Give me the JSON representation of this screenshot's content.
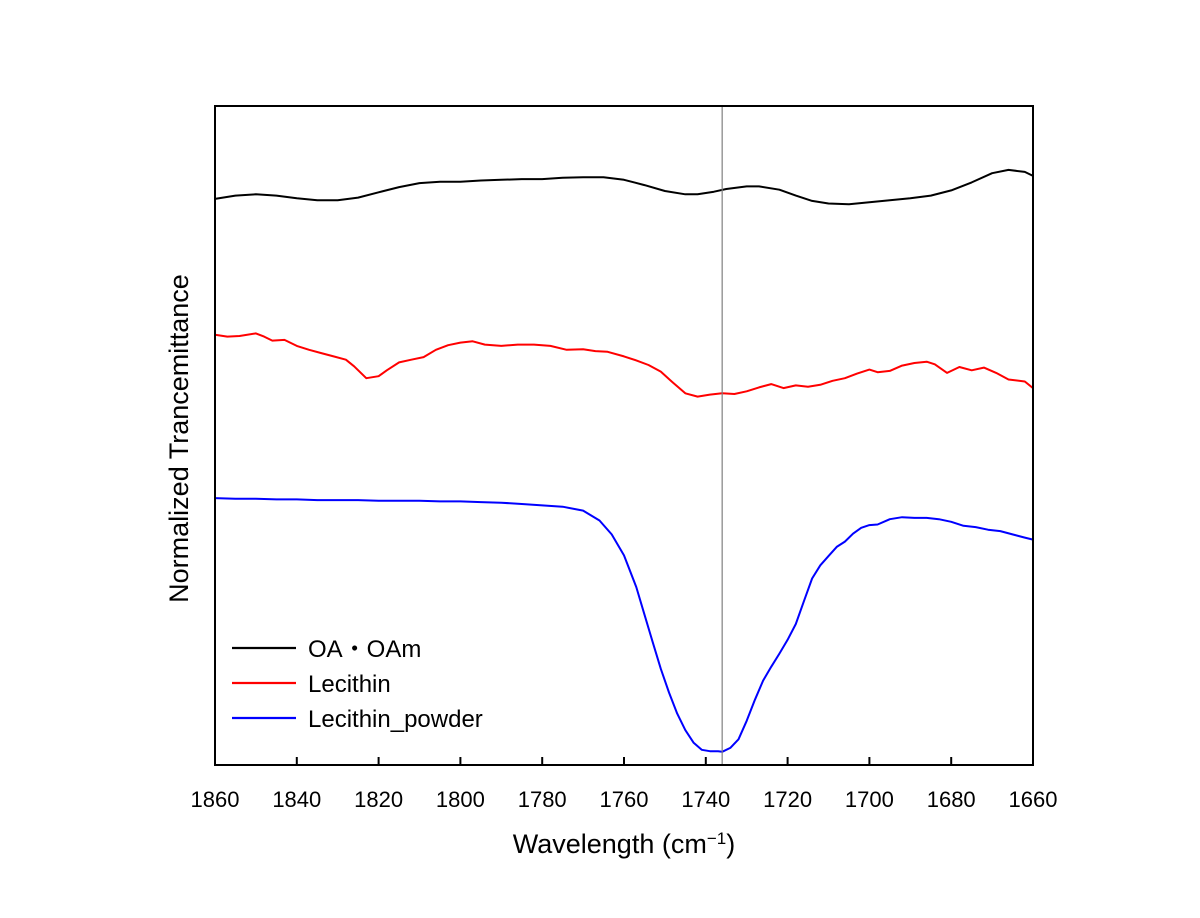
{
  "chart_data": {
    "type": "line",
    "title": "",
    "xlabel": "Wavelength (cm",
    "xlabel_unit_sup": "−1",
    "xlabel_close": ")",
    "ylabel": "Normalized Trancemittance",
    "xlim": [
      1860,
      1660
    ],
    "x_reversed": true,
    "ylim": [
      0,
      1
    ],
    "y_ticks_shown": false,
    "grid": false,
    "legend_position": "bottom-left",
    "x_ticks": [
      1860,
      1840,
      1820,
      1800,
      1780,
      1760,
      1740,
      1720,
      1700,
      1680,
      1660
    ],
    "reference_line_x": 1736,
    "reference_line_color": "#808080",
    "series": [
      {
        "name": "OA・OAm",
        "color": "#000000",
        "x": [
          1860,
          1855,
          1850,
          1845,
          1840,
          1835,
          1830,
          1825,
          1820,
          1815,
          1810,
          1805,
          1800,
          1795,
          1790,
          1785,
          1780,
          1775,
          1770,
          1765,
          1760,
          1755,
          1750,
          1745,
          1742,
          1738,
          1735,
          1730,
          1727,
          1722,
          1718,
          1714,
          1710,
          1705,
          1700,
          1695,
          1690,
          1685,
          1680,
          1675,
          1670,
          1666,
          1662,
          1660
        ],
        "y": [
          0.859,
          0.864,
          0.866,
          0.864,
          0.86,
          0.857,
          0.857,
          0.861,
          0.869,
          0.877,
          0.883,
          0.885,
          0.885,
          0.887,
          0.888,
          0.889,
          0.889,
          0.891,
          0.892,
          0.892,
          0.888,
          0.88,
          0.871,
          0.866,
          0.866,
          0.87,
          0.874,
          0.878,
          0.878,
          0.873,
          0.864,
          0.856,
          0.852,
          0.851,
          0.854,
          0.857,
          0.86,
          0.864,
          0.872,
          0.884,
          0.898,
          0.903,
          0.9,
          0.894
        ]
      },
      {
        "name": "Lecithin",
        "color": "#ff0000",
        "x": [
          1860,
          1857,
          1854,
          1850,
          1848,
          1846,
          1843,
          1840,
          1837,
          1834,
          1831,
          1828,
          1826,
          1823,
          1820,
          1818,
          1815,
          1812,
          1809,
          1806,
          1803,
          1800,
          1797,
          1794,
          1790,
          1786,
          1782,
          1778,
          1774,
          1770,
          1767,
          1764,
          1760,
          1757,
          1754,
          1751,
          1748,
          1745,
          1742,
          1739,
          1736,
          1733,
          1730,
          1727,
          1724,
          1721,
          1718,
          1715,
          1712,
          1709,
          1706,
          1703,
          1700,
          1698,
          1695,
          1692,
          1689,
          1686,
          1684,
          1681,
          1678,
          1675,
          1672,
          1669,
          1666,
          1662,
          1660
        ],
        "y": [
          0.653,
          0.65,
          0.651,
          0.655,
          0.65,
          0.644,
          0.645,
          0.636,
          0.63,
          0.625,
          0.62,
          0.615,
          0.605,
          0.587,
          0.59,
          0.599,
          0.611,
          0.615,
          0.619,
          0.63,
          0.637,
          0.641,
          0.643,
          0.638,
          0.636,
          0.638,
          0.638,
          0.636,
          0.63,
          0.631,
          0.628,
          0.627,
          0.62,
          0.614,
          0.607,
          0.597,
          0.58,
          0.564,
          0.559,
          0.562,
          0.564,
          0.563,
          0.567,
          0.573,
          0.578,
          0.572,
          0.576,
          0.574,
          0.577,
          0.583,
          0.587,
          0.594,
          0.6,
          0.596,
          0.598,
          0.606,
          0.61,
          0.612,
          0.608,
          0.595,
          0.604,
          0.599,
          0.603,
          0.595,
          0.585,
          0.582,
          0.572
        ]
      },
      {
        "name": "Lecithin_powder",
        "color": "#0000ff",
        "x": [
          1860,
          1855,
          1850,
          1845,
          1840,
          1835,
          1830,
          1825,
          1820,
          1815,
          1810,
          1805,
          1800,
          1795,
          1790,
          1785,
          1780,
          1775,
          1770,
          1766,
          1763,
          1760,
          1757,
          1755,
          1753,
          1751,
          1749,
          1747,
          1745,
          1743,
          1741,
          1739,
          1737,
          1736,
          1734,
          1732,
          1730,
          1728,
          1726,
          1724,
          1722,
          1720,
          1718,
          1716,
          1714,
          1712,
          1710,
          1708,
          1706,
          1704,
          1702,
          1700,
          1698,
          1695,
          1692,
          1689,
          1686,
          1683,
          1680,
          1677,
          1674,
          1671,
          1668,
          1665,
          1662,
          1660
        ],
        "y": [
          0.405,
          0.404,
          0.404,
          0.403,
          0.403,
          0.402,
          0.402,
          0.402,
          0.401,
          0.401,
          0.401,
          0.4,
          0.4,
          0.399,
          0.398,
          0.396,
          0.394,
          0.392,
          0.386,
          0.371,
          0.35,
          0.318,
          0.27,
          0.228,
          0.187,
          0.146,
          0.11,
          0.078,
          0.053,
          0.034,
          0.023,
          0.021,
          0.021,
          0.02,
          0.026,
          0.039,
          0.067,
          0.099,
          0.128,
          0.149,
          0.169,
          0.19,
          0.214,
          0.249,
          0.283,
          0.303,
          0.317,
          0.331,
          0.339,
          0.351,
          0.36,
          0.364,
          0.365,
          0.373,
          0.376,
          0.375,
          0.375,
          0.373,
          0.369,
          0.363,
          0.361,
          0.357,
          0.355,
          0.35,
          0.345,
          0.342
        ]
      }
    ]
  }
}
